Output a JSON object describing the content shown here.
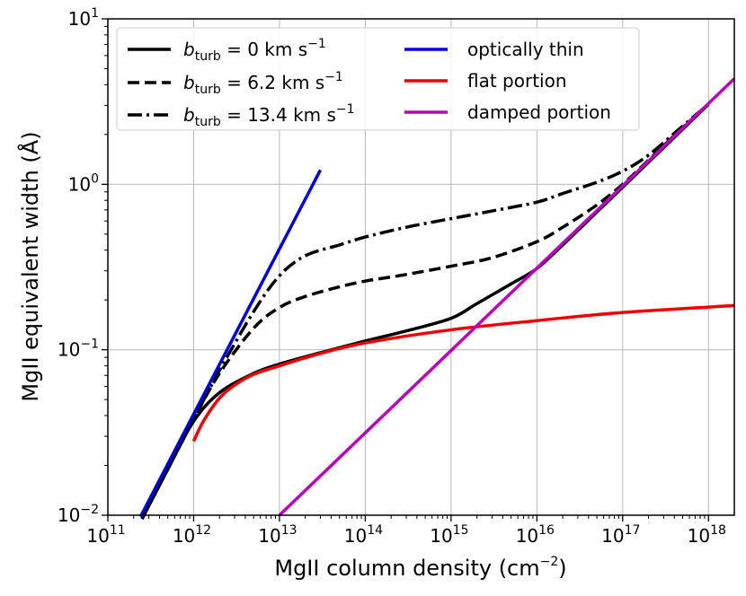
{
  "chart_data": {
    "type": "line",
    "xlabel": "MgII column density (cm⁻²)",
    "xlabel_base": "MgII column density (cm",
    "xlabel_sup": "−2",
    "xlabel_end": ")",
    "ylabel": "MgII equivalent width (Å)",
    "xscale": "log",
    "yscale": "log",
    "xlim": [
      100000000000.0,
      2e+18
    ],
    "ylim": [
      0.01,
      10
    ],
    "grid": true,
    "legend_position": "top-left",
    "x_ticks": [
      {
        "value": 100000000000.0,
        "base": "10",
        "exp": "11"
      },
      {
        "value": 1000000000000.0,
        "base": "10",
        "exp": "12"
      },
      {
        "value": 10000000000000.0,
        "base": "10",
        "exp": "13"
      },
      {
        "value": 100000000000000.0,
        "base": "10",
        "exp": "14"
      },
      {
        "value": 1000000000000000.0,
        "base": "10",
        "exp": "15"
      },
      {
        "value": 1e+16,
        "base": "10",
        "exp": "16"
      },
      {
        "value": 1e+17,
        "base": "10",
        "exp": "17"
      },
      {
        "value": 1e+18,
        "base": "10",
        "exp": "18"
      }
    ],
    "y_ticks": [
      {
        "value": 0.01,
        "base": "10",
        "exp": "−2"
      },
      {
        "value": 0.1,
        "base": "10",
        "exp": "−1"
      },
      {
        "value": 1,
        "base": "10",
        "exp": "0"
      },
      {
        "value": 10,
        "base": "10",
        "exp": "1"
      }
    ],
    "series": [
      {
        "name": "b_turb = 0 km s⁻¹",
        "label_prefix": "b",
        "label_sub": "turb",
        "label_value": " = 0 km s",
        "label_sup": "−1",
        "color": "#000000",
        "dash": "solid",
        "x": [
          250000000000.0,
          500000000000.0,
          1000000000000.0,
          2000000000000.0,
          5000000000000.0,
          10000000000000.0,
          30000000000000.0,
          100000000000000.0,
          300000000000000.0,
          1000000000000000.0,
          2000000000000000.0,
          5000000000000000.0,
          1e+16,
          2e+16,
          5e+16,
          1e+17,
          2e+17,
          5e+17,
          1e+18
        ],
        "y": [
          0.0095,
          0.019,
          0.037,
          0.055,
          0.072,
          0.082,
          0.096,
          0.113,
          0.13,
          0.155,
          0.19,
          0.25,
          0.31,
          0.43,
          0.68,
          0.96,
          1.36,
          2.15,
          3.05
        ]
      },
      {
        "name": "b_turb = 6.2 km s⁻¹",
        "label_prefix": "b",
        "label_sub": "turb",
        "label_value": " = 6.2 km s",
        "label_sup": "−1",
        "color": "#000000",
        "dash": "dashed",
        "x": [
          250000000000.0,
          500000000000.0,
          1000000000000.0,
          2000000000000.0,
          5000000000000.0,
          10000000000000.0,
          20000000000000.0,
          50000000000000.0,
          100000000000000.0,
          300000000000000.0,
          1000000000000000.0,
          3000000000000000.0,
          1e+16,
          2e+16,
          5e+16,
          1e+17,
          2e+17,
          5e+17,
          1e+18
        ],
        "y": [
          0.0095,
          0.019,
          0.038,
          0.072,
          0.135,
          0.18,
          0.21,
          0.24,
          0.26,
          0.285,
          0.32,
          0.36,
          0.45,
          0.55,
          0.75,
          1.0,
          1.4,
          2.2,
          3.05
        ]
      },
      {
        "name": "b_turb = 13.4 km s⁻¹",
        "label_prefix": "b",
        "label_sub": "turb",
        "label_value": " = 13.4 km s",
        "label_sup": "−1",
        "color": "#000000",
        "dash": "dashdot",
        "x": [
          250000000000.0,
          500000000000.0,
          1000000000000.0,
          2000000000000.0,
          5000000000000.0,
          10000000000000.0,
          20000000000000.0,
          50000000000000.0,
          100000000000000.0,
          300000000000000.0,
          1000000000000000.0,
          3000000000000000.0,
          1e+16,
          2e+16,
          5e+16,
          1e+17,
          2e+17,
          5e+17,
          1e+18
        ],
        "y": [
          0.0095,
          0.019,
          0.038,
          0.075,
          0.17,
          0.28,
          0.37,
          0.43,
          0.48,
          0.55,
          0.62,
          0.69,
          0.78,
          0.88,
          1.03,
          1.2,
          1.5,
          2.25,
          3.05
        ]
      },
      {
        "name": "optically thin",
        "color": "#0000dd",
        "dash": "solid",
        "x": [
          240000000000.0,
          30000000000000.0
        ],
        "y": [
          0.0098,
          1.22
        ]
      },
      {
        "name": "flat portion",
        "color": "#ee0000",
        "dash": "solid",
        "x": [
          1000000000000.0,
          1300000000000.0,
          2000000000000.0,
          3000000000000.0,
          5000000000000.0,
          10000000000000.0,
          30000000000000.0,
          100000000000000.0,
          1000000000000000.0,
          1e+16,
          1e+17,
          2e+18
        ],
        "y": [
          0.028,
          0.037,
          0.051,
          0.061,
          0.071,
          0.08,
          0.095,
          0.11,
          0.132,
          0.15,
          0.168,
          0.185
        ]
      },
      {
        "name": "damped portion",
        "color": "#bb00bb",
        "dash": "solid",
        "x": [
          10000000000000.0,
          2e+18
        ],
        "y": [
          0.01,
          4.35
        ]
      }
    ]
  }
}
